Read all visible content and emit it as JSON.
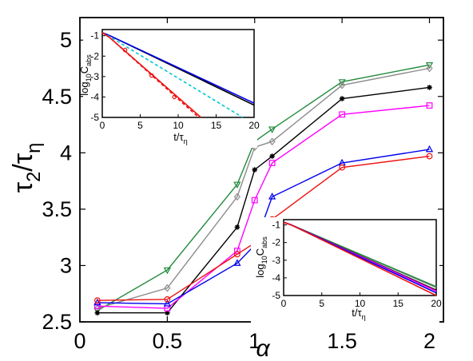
{
  "chart_data": [
    {
      "type": "line",
      "xlabel": "α",
      "ylabel": "τ2/τη",
      "xlim": [
        0,
        2.08
      ],
      "ylim": [
        2.5,
        5.2
      ],
      "xticks": [
        0,
        0.5,
        1,
        1.5,
        2
      ],
      "yticks": [
        2.5,
        3,
        3.5,
        4,
        4.5,
        5
      ],
      "x": [
        0.1,
        0.5,
        0.9,
        1.0,
        1.1,
        1.5,
        2.0
      ],
      "grid": false,
      "series": [
        {
          "color": "#228b3c",
          "marker": "triangle-down",
          "values": [
            2.6,
            2.96,
            3.72,
            4.1,
            4.21,
            4.63,
            4.78
          ]
        },
        {
          "color": "#8c8c8c",
          "marker": "diamond",
          "values": [
            2.62,
            2.8,
            3.61,
            4.05,
            4.1,
            4.6,
            4.75
          ]
        },
        {
          "color": "#000000",
          "marker": "asterisk",
          "values": [
            2.58,
            2.58,
            3.34,
            3.85,
            3.97,
            4.48,
            4.58
          ]
        },
        {
          "color": "#ff00ff",
          "marker": "square",
          "values": [
            2.64,
            2.62,
            3.13,
            3.58,
            3.91,
            4.34,
            4.42
          ]
        },
        {
          "color": "#0000ee",
          "marker": "triangle-up",
          "values": [
            2.67,
            2.66,
            3.02,
            3.18,
            3.61,
            3.91,
            4.03
          ]
        },
        {
          "color": "#ee1111",
          "marker": "circle",
          "values": [
            2.69,
            2.7,
            3.1,
            3.2,
            3.41,
            3.87,
            3.97
          ]
        }
      ]
    },
    {
      "type": "line",
      "xlabel": "t/τη",
      "ylabel": "log10Cabs",
      "xlim": [
        0,
        20
      ],
      "ylim": [
        -5,
        -0.7
      ],
      "xticks": [
        0,
        5,
        10,
        15,
        20
      ],
      "yticks": [
        -1,
        -2,
        -3,
        -4,
        -5
      ],
      "series": [
        {
          "color": "#000000",
          "style": "solid",
          "x": [
            0,
            1,
            20
          ],
          "y": [
            -0.85,
            -1.0,
            -4.4
          ]
        },
        {
          "color": "#0000ee",
          "style": "solid",
          "x": [
            0,
            1,
            20
          ],
          "y": [
            -0.85,
            -1.0,
            -4.3
          ]
        },
        {
          "color": "#00c8d2",
          "style": "dashed",
          "x": [
            0,
            1,
            18.5
          ],
          "y": [
            -0.85,
            -1.05,
            -5.0
          ]
        },
        {
          "color": "#ee1111",
          "style": "solid",
          "x": [
            0,
            1,
            13
          ],
          "y": [
            -0.85,
            -1.1,
            -5.0
          ]
        },
        {
          "color": "#ee1111",
          "style": "dashed",
          "x": [
            0,
            1,
            12.7
          ],
          "y": [
            -0.85,
            -1.1,
            -5.0
          ]
        }
      ]
    },
    {
      "type": "line",
      "xlabel": "t/τη",
      "ylabel": "log10Cabs",
      "xlim": [
        0,
        20
      ],
      "ylim": [
        -5,
        -0.7
      ],
      "xticks": [
        0,
        5,
        10,
        15,
        20
      ],
      "yticks": [
        -1,
        -2,
        -3,
        -4,
        -5
      ],
      "series": [
        {
          "color": "#8c8c8c",
          "x": [
            0,
            1,
            20
          ],
          "y": [
            -0.85,
            -1.0,
            -4.55
          ]
        },
        {
          "color": "#228b3c",
          "x": [
            0,
            1,
            20
          ],
          "y": [
            -0.85,
            -1.0,
            -4.5
          ]
        },
        {
          "color": "#000000",
          "x": [
            0,
            1,
            20
          ],
          "y": [
            -0.85,
            -1.0,
            -4.7
          ]
        },
        {
          "color": "#ff00ff",
          "x": [
            0,
            1,
            20
          ],
          "y": [
            -0.85,
            -1.0,
            -4.75
          ]
        },
        {
          "color": "#0000ee",
          "x": [
            0,
            1,
            20
          ],
          "y": [
            -0.85,
            -1.0,
            -4.85
          ]
        },
        {
          "color": "#ee1111",
          "x": [
            0,
            1,
            20
          ],
          "y": [
            -0.85,
            -1.0,
            -5.0
          ]
        }
      ]
    }
  ]
}
